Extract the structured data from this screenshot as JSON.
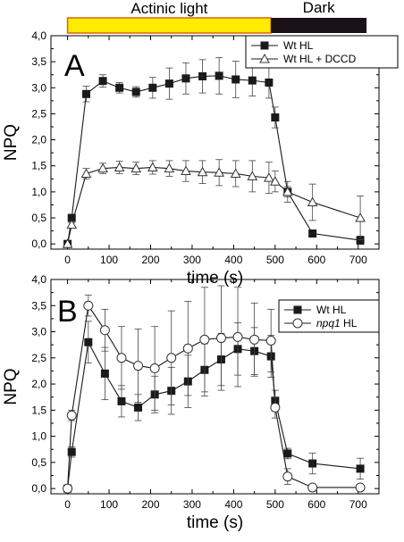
{
  "colors": {
    "light_bar": "#ffeb00",
    "light_bar_border": "#d06a00",
    "dark_bar": "#1a1216"
  },
  "period_bar": {
    "light_label": "Actinic light",
    "dark_label": "Dark",
    "light_range": [
      0,
      490
    ],
    "dark_range": [
      490,
      720
    ]
  },
  "chart_data": [
    {
      "type": "line",
      "panel_label": "A",
      "xlabel": "time (s)",
      "ylabel": "NPQ",
      "xlim": [
        -40,
        750
      ],
      "ylim": [
        -0.1,
        4.0
      ],
      "xticks": [
        0,
        100,
        200,
        300,
        400,
        500,
        600,
        700
      ],
      "yticks": [
        "0,0",
        "0,5",
        "1,0",
        "1,5",
        "2,0",
        "2,5",
        "3,0",
        "3,5",
        "4,0"
      ],
      "legend_position": "top-right",
      "series": [
        {
          "name": "Wt HL",
          "marker": "filled-square",
          "x": [
            0,
            10,
            45,
            85,
            125,
            165,
            205,
            245,
            285,
            325,
            365,
            405,
            445,
            485,
            500,
            530,
            590,
            705
          ],
          "y": [
            0.0,
            0.5,
            2.88,
            3.13,
            3.0,
            2.92,
            3.0,
            3.08,
            3.18,
            3.22,
            3.23,
            3.16,
            3.14,
            3.1,
            2.43,
            1.0,
            0.2,
            0.07
          ],
          "err": [
            0,
            0.05,
            0.15,
            0.12,
            0.1,
            0.1,
            0.2,
            0.3,
            0.3,
            0.32,
            0.35,
            0.35,
            0.3,
            0.3,
            0.2,
            0.1,
            0.05,
            0.08
          ]
        },
        {
          "name": "Wt HL + DCCD",
          "marker": "open-triangle",
          "x": [
            0,
            10,
            45,
            85,
            125,
            165,
            205,
            245,
            285,
            325,
            365,
            405,
            445,
            485,
            500,
            530,
            590,
            705
          ],
          "y": [
            0.0,
            0.37,
            1.35,
            1.45,
            1.47,
            1.45,
            1.47,
            1.45,
            1.4,
            1.38,
            1.37,
            1.35,
            1.3,
            1.27,
            1.2,
            1.0,
            0.8,
            0.5
          ],
          "err": [
            0,
            0.04,
            0.1,
            0.1,
            0.12,
            0.12,
            0.13,
            0.15,
            0.2,
            0.22,
            0.25,
            0.25,
            0.3,
            0.3,
            0.2,
            0.2,
            0.35,
            0.42
          ]
        }
      ]
    },
    {
      "type": "line",
      "panel_label": "B",
      "xlabel": "time (s)",
      "ylabel": "NPQ",
      "xlim": [
        -40,
        750
      ],
      "ylim": [
        -0.1,
        4.0
      ],
      "xticks": [
        0,
        100,
        200,
        300,
        400,
        500,
        600,
        700
      ],
      "yticks": [
        "0,0",
        "0,5",
        "1,0",
        "1,5",
        "2,0",
        "2,5",
        "3,0",
        "3,5",
        "4,0"
      ],
      "legend_position": "top-right",
      "series": [
        {
          "name": "Wt HL",
          "marker": "filled-square",
          "x": [
            0,
            10,
            50,
            90,
            130,
            170,
            210,
            250,
            290,
            330,
            370,
            410,
            450,
            490,
            500,
            530,
            590,
            705
          ],
          "y": [
            0.0,
            0.7,
            2.8,
            2.2,
            1.67,
            1.55,
            1.8,
            1.87,
            2.05,
            2.27,
            2.47,
            2.67,
            2.63,
            2.53,
            1.68,
            0.67,
            0.48,
            0.38
          ],
          "err": [
            0,
            0.1,
            0.4,
            0.5,
            0.3,
            0.25,
            0.35,
            0.45,
            0.5,
            0.5,
            0.5,
            0.5,
            0.45,
            0.4,
            0.2,
            0.1,
            0.2,
            0.2
          ]
        },
        {
          "name": "npq1 HL",
          "name_italic": "npq1",
          "name_rest": " HL",
          "marker": "open-circle",
          "x": [
            0,
            10,
            50,
            90,
            130,
            170,
            210,
            250,
            290,
            330,
            370,
            410,
            450,
            490,
            500,
            530,
            590,
            705
          ],
          "y": [
            0.0,
            1.4,
            3.5,
            3.03,
            2.5,
            2.35,
            2.3,
            2.5,
            2.68,
            2.85,
            2.88,
            2.9,
            2.85,
            2.83,
            1.55,
            0.23,
            0.02,
            0.02
          ],
          "err": [
            0,
            0.1,
            0.2,
            0.4,
            0.6,
            0.7,
            0.8,
            0.9,
            0.9,
            1.0,
            1.0,
            0.95,
            0.7,
            0.6,
            0.2,
            0.15,
            0.05,
            0.05
          ]
        }
      ]
    }
  ]
}
